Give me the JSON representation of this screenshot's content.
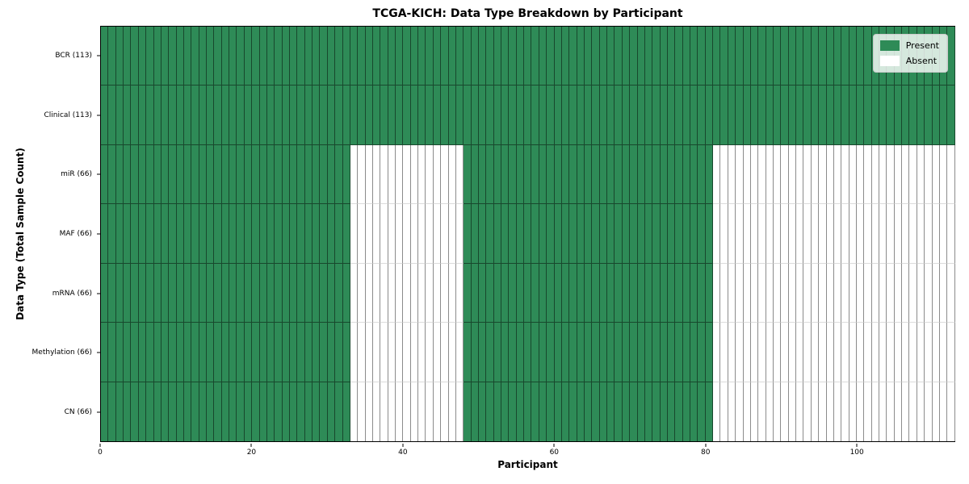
{
  "chart_data": {
    "type": "heatmap",
    "title": "TCGA-KICH: Data Type Breakdown by Participant",
    "xlabel": "Participant",
    "ylabel": "Data Type (Total Sample Count)",
    "n_participants": 113,
    "x_range": [
      0,
      113
    ],
    "x_ticks": [
      0,
      20,
      40,
      60,
      80,
      100
    ],
    "grid": "cell-borders",
    "legend_position": "upper-right",
    "rows": [
      {
        "label": "BCR (113)",
        "present_count": 113,
        "present_ranges": [
          [
            0,
            113
          ]
        ]
      },
      {
        "label": "Clinical (113)",
        "present_count": 113,
        "present_ranges": [
          [
            0,
            113
          ]
        ]
      },
      {
        "label": "miR (66)",
        "present_count": 66,
        "present_ranges": [
          [
            0,
            33
          ],
          [
            48,
            81
          ]
        ]
      },
      {
        "label": "MAF (66)",
        "present_count": 66,
        "present_ranges": [
          [
            0,
            33
          ],
          [
            48,
            81
          ]
        ]
      },
      {
        "label": "mRNA (66)",
        "present_count": 66,
        "present_ranges": [
          [
            0,
            33
          ],
          [
            48,
            81
          ]
        ]
      },
      {
        "label": "Methylation (66)",
        "present_count": 66,
        "present_ranges": [
          [
            0,
            33
          ],
          [
            48,
            81
          ]
        ]
      },
      {
        "label": "CN (66)",
        "present_count": 66,
        "present_ranges": [
          [
            0,
            33
          ],
          [
            48,
            81
          ]
        ]
      }
    ],
    "legend": [
      {
        "label": "Present",
        "color": "#2E8B57"
      },
      {
        "label": "Absent",
        "color": "#FFFFFF"
      }
    ],
    "colors": {
      "present": "#2E8B57",
      "absent": "#FFFFFF",
      "cell_edge": "rgba(0,0,0,0.48)"
    }
  }
}
